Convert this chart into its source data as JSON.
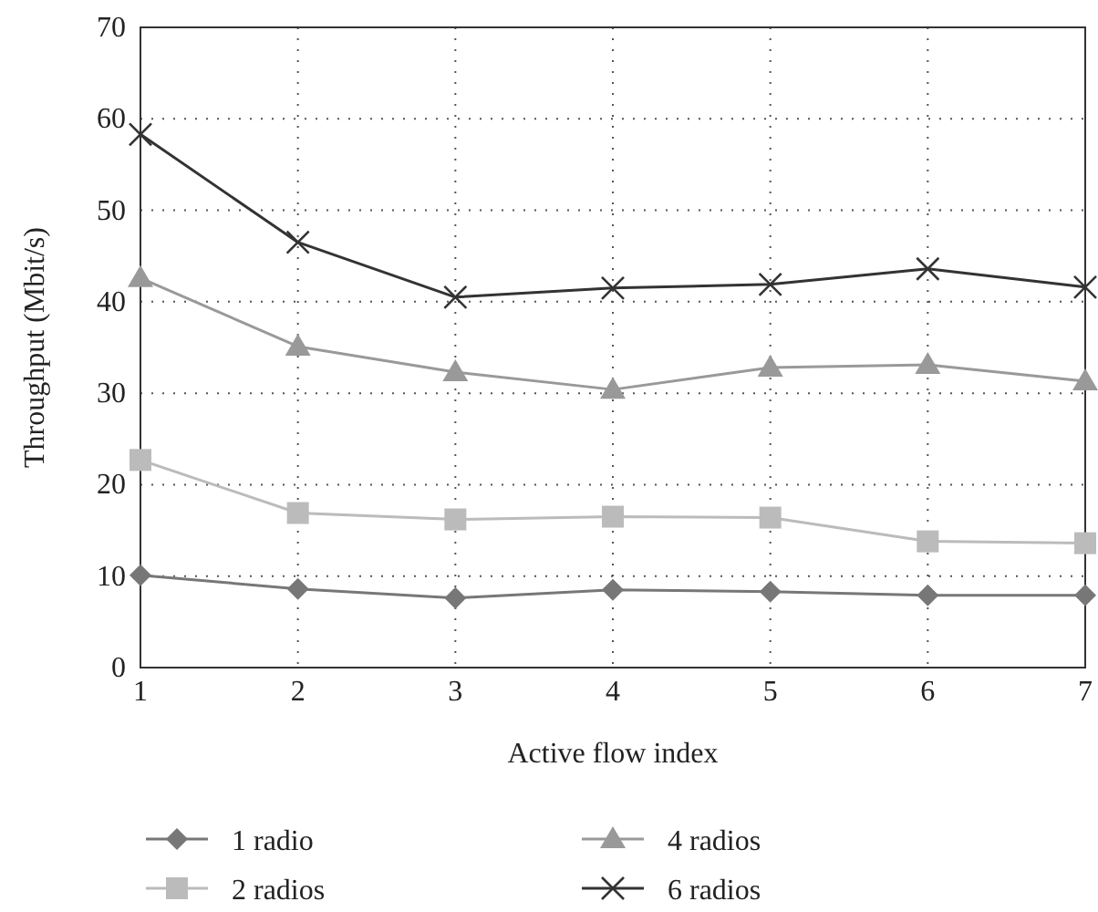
{
  "chart_data": {
    "type": "line",
    "xlabel": "Active flow index",
    "ylabel": "Throughput (Mbit/s)",
    "x": [
      1,
      2,
      3,
      4,
      5,
      6,
      7
    ],
    "xlim": [
      1,
      7
    ],
    "xticks": [
      1,
      2,
      3,
      4,
      5,
      6,
      7
    ],
    "ylim": [
      0,
      70
    ],
    "yticks": [
      0,
      10,
      20,
      30,
      40,
      50,
      60,
      70
    ],
    "grid": true,
    "legend": "bottom",
    "line_style": "solid",
    "series": [
      {
        "name": "1 radio",
        "color": "#777777",
        "marker": "diamond",
        "values": [
          10.1,
          8.6,
          7.6,
          8.5,
          8.3,
          7.9,
          7.9
        ]
      },
      {
        "name": "2 radios",
        "color": "#bbbbbc",
        "marker": "square",
        "values": [
          22.7,
          16.9,
          16.2,
          16.5,
          16.4,
          13.8,
          13.6
        ]
      },
      {
        "name": "4 radios",
        "color": "#999999",
        "marker": "triangle",
        "values": [
          42.6,
          35.1,
          32.3,
          30.4,
          32.8,
          33.1,
          31.3
        ]
      },
      {
        "name": "6 radios",
        "color": "#333333",
        "marker": "cross",
        "values": [
          58.3,
          46.5,
          40.5,
          41.5,
          41.9,
          43.6,
          41.6
        ]
      }
    ]
  }
}
